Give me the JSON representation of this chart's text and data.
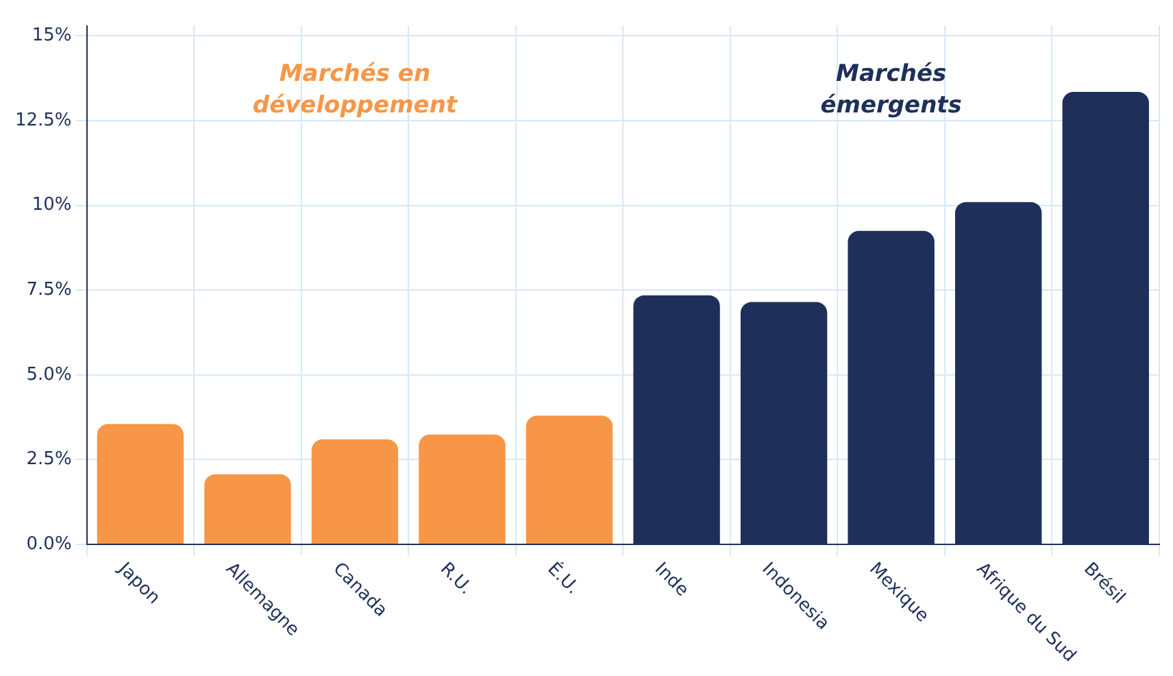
{
  "chart_data": {
    "type": "bar",
    "categories": [
      "Japon",
      "Allemagne",
      "Canada",
      "R.U.",
      "É.U.",
      "Inde",
      "Indonesia",
      "Mexique",
      "Afrique du Sud",
      "Brésil"
    ],
    "values": [
      3.55,
      2.07,
      3.1,
      3.24,
      3.8,
      7.35,
      7.15,
      9.25,
      10.1,
      13.35
    ],
    "colors": [
      "#f79646",
      "#f79646",
      "#f79646",
      "#f79646",
      "#f79646",
      "#1e3059",
      "#1e3059",
      "#1e3059",
      "#1e3059",
      "#1e3059"
    ],
    "ylim": [
      0,
      15.3
    ],
    "yticks": [
      {
        "value": 0,
        "label": "0.0%"
      },
      {
        "value": 2.5,
        "label": "2.5%"
      },
      {
        "value": 5,
        "label": "5.0%"
      },
      {
        "value": 7.5,
        "label": "7.5%"
      },
      {
        "value": 10,
        "label": "10%"
      },
      {
        "value": 12.5,
        "label": "12.5%"
      },
      {
        "value": 15,
        "label": "15%"
      }
    ],
    "annotations": [
      "Marchés en développement",
      "Marchés émergents"
    ],
    "grid": true,
    "legend": false
  }
}
